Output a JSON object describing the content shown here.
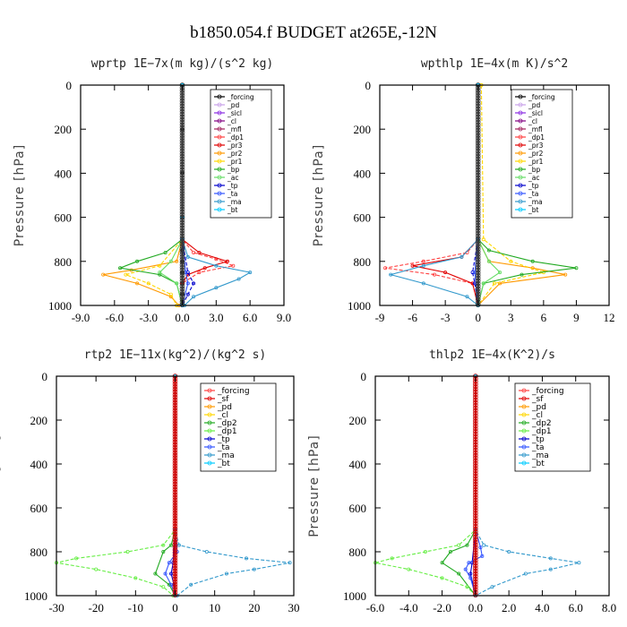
{
  "figure": {
    "title": "b1850.054.f  BUDGET at265E,-12N"
  },
  "chart_data": [
    {
      "type": "line",
      "title": "wprtp   1E−7x(m kg)/(s^2 kg)",
      "ylabel": "Pressure [hPa]",
      "xlim": [
        -9,
        9
      ],
      "ylim": [
        0,
        1000
      ],
      "xticks": [
        "-9.0",
        "-6.0",
        "-3.0",
        "0.0",
        "3.0",
        "6.0",
        "9.0"
      ],
      "yticks": [
        "0",
        "200",
        "400",
        "600",
        "800",
        "1000"
      ],
      "legend": "top-right",
      "series": [
        {
          "name": "_forcing",
          "color": "#000000",
          "p": [
            0,
            200,
            400,
            600,
            750,
            800,
            850,
            900,
            950,
            1000
          ],
          "x": [
            0,
            0,
            0,
            0,
            0,
            0,
            0,
            0,
            0,
            0
          ]
        },
        {
          "name": "_pd",
          "color": "#c8a0e8",
          "p": [
            0,
            600,
            1000
          ],
          "x": [
            0,
            0,
            0
          ]
        },
        {
          "name": "_sicl",
          "color": "#8a2be2",
          "p": [
            0,
            600,
            1000
          ],
          "x": [
            0,
            0,
            0
          ]
        },
        {
          "name": "_cl",
          "color": "#800080",
          "p": [
            0,
            600,
            1000
          ],
          "x": [
            0,
            0,
            0
          ]
        },
        {
          "name": "_mfl",
          "color": "#a0205a",
          "p": [
            0,
            600,
            1000
          ],
          "x": [
            0,
            0,
            0
          ]
        },
        {
          "name": "_dp1",
          "color": "#ff4040",
          "p": [
            0,
            700,
            760,
            790,
            820,
            850,
            900,
            1000
          ],
          "x": [
            0,
            0,
            1.0,
            3.0,
            4.5,
            1.5,
            0,
            0
          ]
        },
        {
          "name": "_pr3",
          "color": "#e00000",
          "p": [
            0,
            700,
            760,
            800,
            830,
            860,
            900,
            1000
          ],
          "x": [
            0,
            0,
            1.5,
            4.0,
            2.0,
            0.5,
            0,
            0
          ]
        },
        {
          "name": "_pr2",
          "color": "#ff9900",
          "p": [
            0,
            700,
            800,
            840,
            860,
            900,
            960,
            1000
          ],
          "x": [
            0,
            0,
            -0.5,
            -4.5,
            -7.0,
            -4.0,
            -1.0,
            -0.3
          ]
        },
        {
          "name": "_pr1",
          "color": "#ffd700",
          "p": [
            0,
            700,
            820,
            860,
            900,
            950,
            1000
          ],
          "x": [
            0,
            0,
            -2.0,
            -5.0,
            -3.0,
            -1.0,
            -0.5
          ]
        },
        {
          "name": "_bp",
          "color": "#22aa22",
          "p": [
            0,
            700,
            760,
            800,
            830,
            860,
            900,
            1000
          ],
          "x": [
            0,
            0,
            -1.5,
            -4.0,
            -5.5,
            -2.0,
            -0.5,
            0
          ]
        },
        {
          "name": "_ac",
          "color": "#66dd66",
          "p": [
            0,
            700,
            800,
            850,
            900,
            1000
          ],
          "x": [
            0,
            0,
            -1.0,
            -2.0,
            -0.5,
            0
          ]
        },
        {
          "name": "_tp",
          "color": "#0000cc",
          "p": [
            0,
            700,
            850,
            900,
            950,
            1000
          ],
          "x": [
            0,
            0,
            0.5,
            1.0,
            0.5,
            0
          ]
        },
        {
          "name": "_ta",
          "color": "#3355ff",
          "p": [
            0,
            700,
            850,
            900,
            1000
          ],
          "x": [
            0,
            0,
            0.3,
            0.5,
            0
          ]
        },
        {
          "name": "_ma",
          "color": "#3399cc",
          "p": [
            0,
            700,
            780,
            820,
            850,
            880,
            920,
            960,
            1000
          ],
          "x": [
            0,
            0,
            0.5,
            3.0,
            6.0,
            5.0,
            3.0,
            1.0,
            0.2
          ]
        },
        {
          "name": "_bt",
          "color": "#00ccff",
          "p": [
            0,
            600,
            1000
          ],
          "x": [
            0,
            0,
            0
          ]
        }
      ]
    },
    {
      "type": "line",
      "title": "wpthlp   1E−4x(m K)/s^2",
      "ylabel": "Pressure [hPa]",
      "xlim": [
        -9,
        12
      ],
      "ylim": [
        0,
        1000
      ],
      "xticks": [
        "-9",
        "-6",
        "-3",
        "0",
        "3",
        "6",
        "9",
        "12"
      ],
      "yticks": [
        "0",
        "200",
        "400",
        "600",
        "800",
        "1000"
      ],
      "legend": "top-right",
      "series": [
        {
          "name": "_forcing",
          "color": "#000000",
          "p": [
            0,
            1000
          ],
          "x": [
            0,
            0
          ]
        },
        {
          "name": "_pd",
          "color": "#c8a0e8",
          "p": [
            0,
            1000
          ],
          "x": [
            0,
            0
          ]
        },
        {
          "name": "_sicl",
          "color": "#8a2be2",
          "p": [
            0,
            1000
          ],
          "x": [
            0,
            0
          ]
        },
        {
          "name": "_cl",
          "color": "#800080",
          "p": [
            0,
            1000
          ],
          "x": [
            0,
            0
          ]
        },
        {
          "name": "_mfl",
          "color": "#a0205a",
          "p": [
            0,
            1000
          ],
          "x": [
            0,
            0
          ]
        },
        {
          "name": "_dp1",
          "color": "#ff4040",
          "p": [
            0,
            700,
            760,
            800,
            830,
            860,
            900,
            1000
          ],
          "x": [
            0,
            0,
            -1.0,
            -5.0,
            -8.5,
            -4.0,
            -0.5,
            0
          ]
        },
        {
          "name": "_pr3",
          "color": "#e00000",
          "p": [
            0,
            700,
            780,
            820,
            850,
            900,
            1000
          ],
          "x": [
            0,
            0,
            -1.5,
            -6.0,
            -3.0,
            -0.5,
            0
          ]
        },
        {
          "name": "_pr2",
          "color": "#ff9900",
          "p": [
            0,
            700,
            800,
            830,
            860,
            900,
            1000
          ],
          "x": [
            0,
            0,
            1.0,
            5.0,
            8.0,
            2.0,
            0
          ]
        },
        {
          "name": "_pr1",
          "color": "#ffd700",
          "p": [
            0,
            0,
            700,
            800,
            850,
            900,
            1000
          ],
          "x": [
            0.3,
            0.3,
            0.5,
            3.0,
            6.0,
            1.5,
            0
          ]
        },
        {
          "name": "_bp",
          "color": "#22aa22",
          "p": [
            0,
            700,
            750,
            800,
            830,
            860,
            900,
            1000
          ],
          "x": [
            0,
            0,
            1.0,
            5.0,
            9.0,
            4.0,
            0.5,
            0
          ]
        },
        {
          "name": "_ac",
          "color": "#66dd66",
          "p": [
            0,
            700,
            800,
            850,
            900,
            1000
          ],
          "x": [
            0,
            0,
            1.0,
            2.0,
            0.5,
            0
          ]
        },
        {
          "name": "_tp",
          "color": "#0000cc",
          "p": [
            0,
            700,
            850,
            900,
            1000
          ],
          "x": [
            0,
            0,
            -0.5,
            -0.3,
            0
          ]
        },
        {
          "name": "_ta",
          "color": "#3355ff",
          "p": [
            0,
            700,
            850,
            900,
            1000
          ],
          "x": [
            0,
            0,
            -0.3,
            -0.2,
            0
          ]
        },
        {
          "name": "_ma",
          "color": "#3399cc",
          "p": [
            0,
            700,
            780,
            820,
            860,
            900,
            960,
            1000
          ],
          "x": [
            0,
            0,
            -1.5,
            -5.0,
            -8.0,
            -5.0,
            -1.0,
            0
          ]
        },
        {
          "name": "_bt",
          "color": "#00ccff",
          "p": [
            0,
            1000
          ],
          "x": [
            0,
            0
          ]
        }
      ]
    },
    {
      "type": "line",
      "title": "rtp2   1E−11x(kg^2)/(kg^2 s)",
      "ylabel": "Pressure [hPa]",
      "xlim": [
        -30,
        30
      ],
      "ylim": [
        0,
        1000
      ],
      "xticks": [
        "-30",
        "-20",
        "-10",
        "0",
        "10",
        "20",
        "30"
      ],
      "yticks": [
        "0",
        "200",
        "400",
        "600",
        "800",
        "1000"
      ],
      "legend": "top-right",
      "series": [
        {
          "name": "_forcing",
          "color": "#ff4040",
          "p": [
            0,
            1000
          ],
          "x": [
            0,
            0
          ]
        },
        {
          "name": "_sf",
          "color": "#e00000",
          "p": [
            0,
            1000
          ],
          "x": [
            0,
            0
          ]
        },
        {
          "name": "_pd",
          "color": "#ff9900",
          "p": [
            0,
            1000
          ],
          "x": [
            0,
            0
          ]
        },
        {
          "name": "_cl",
          "color": "#ffd700",
          "p": [
            0,
            1000
          ],
          "x": [
            0,
            0
          ]
        },
        {
          "name": "_dp2",
          "color": "#22aa22",
          "p": [
            0,
            700,
            770,
            800,
            900,
            950,
            1000
          ],
          "x": [
            0,
            0,
            -1.0,
            -3.0,
            -5.0,
            -1.5,
            0
          ]
        },
        {
          "name": "_dp1",
          "color": "#66ee44",
          "p": [
            0,
            700,
            770,
            800,
            830,
            850,
            880,
            920,
            960,
            1000
          ],
          "x": [
            0,
            0,
            -3.0,
            -12.0,
            -25.0,
            -30.0,
            -20.0,
            -10.0,
            -3.0,
            -0.5
          ]
        },
        {
          "name": "_tp",
          "color": "#0000cc",
          "p": [
            0,
            700,
            850,
            900,
            950,
            1000
          ],
          "x": [
            0,
            0,
            -0.5,
            -1.0,
            -0.3,
            0
          ]
        },
        {
          "name": "_ta",
          "color": "#3355ff",
          "p": [
            0,
            700,
            800,
            850,
            900,
            950,
            1000
          ],
          "x": [
            0,
            0,
            0.5,
            -1.5,
            -2.5,
            -1.0,
            0
          ]
        },
        {
          "name": "_ma",
          "color": "#3399cc",
          "p": [
            0,
            700,
            770,
            800,
            830,
            850,
            880,
            900,
            950,
            1000
          ],
          "x": [
            0,
            0,
            1.0,
            8.0,
            18.0,
            29.0,
            20.0,
            13.0,
            4.0,
            0.5
          ]
        },
        {
          "name": "_bt",
          "color": "#00ccff",
          "p": [
            0,
            1000
          ],
          "x": [
            0,
            0
          ]
        }
      ]
    },
    {
      "type": "line",
      "title": "thlp2   1E−4x(K^2)/s",
      "ylabel": "Pressure [hPa]",
      "xlim": [
        -6,
        8
      ],
      "ylim": [
        0,
        1000
      ],
      "xticks": [
        "-6.0",
        "-4.0",
        "-2.0",
        "0.0",
        "2.0",
        "4.0",
        "6.0",
        "8.0"
      ],
      "yticks": [
        "0",
        "200",
        "400",
        "600",
        "800",
        "1000"
      ],
      "legend": "top-right",
      "series": [
        {
          "name": "_forcing",
          "color": "#ff4040",
          "p": [
            0,
            1000
          ],
          "x": [
            0,
            0
          ]
        },
        {
          "name": "_sf",
          "color": "#e00000",
          "p": [
            0,
            1000
          ],
          "x": [
            0,
            0
          ]
        },
        {
          "name": "_pd",
          "color": "#ff9900",
          "p": [
            0,
            1000
          ],
          "x": [
            0,
            0
          ]
        },
        {
          "name": "_cl",
          "color": "#ffd700",
          "p": [
            0,
            1000
          ],
          "x": [
            0,
            0
          ]
        },
        {
          "name": "_dp2",
          "color": "#22aa22",
          "p": [
            0,
            700,
            770,
            800,
            850,
            900,
            1000
          ],
          "x": [
            0,
            0,
            -0.5,
            -1.5,
            -2.0,
            -1.0,
            0
          ]
        },
        {
          "name": "_dp1",
          "color": "#66ee44",
          "p": [
            0,
            700,
            770,
            800,
            830,
            850,
            880,
            920,
            960,
            1000
          ],
          "x": [
            0,
            0,
            -1.0,
            -3.0,
            -5.0,
            -6.0,
            -4.0,
            -2.0,
            -0.5,
            0
          ]
        },
        {
          "name": "_tp",
          "color": "#0000cc",
          "p": [
            0,
            700,
            850,
            900,
            1000
          ],
          "x": [
            0,
            0,
            -0.2,
            -0.3,
            0
          ]
        },
        {
          "name": "_ta",
          "color": "#3355ff",
          "p": [
            0,
            700,
            780,
            820,
            850,
            880,
            920,
            1000
          ],
          "x": [
            0,
            0,
            0.3,
            0.4,
            -0.4,
            -0.6,
            -0.3,
            0
          ]
        },
        {
          "name": "_ma",
          "color": "#3399cc",
          "p": [
            0,
            700,
            770,
            800,
            830,
            850,
            880,
            900,
            960,
            1000
          ],
          "x": [
            0,
            0,
            0.5,
            2.0,
            4.5,
            6.2,
            4.5,
            3.0,
            1.0,
            0
          ]
        },
        {
          "name": "_bt",
          "color": "#00ccff",
          "p": [
            0,
            1000
          ],
          "x": [
            0,
            0
          ]
        }
      ]
    }
  ]
}
